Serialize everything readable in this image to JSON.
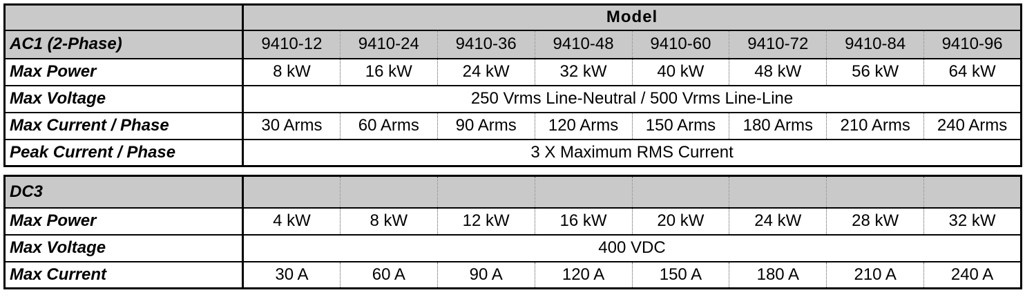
{
  "ac_table": {
    "header": "Model",
    "section": "AC1 (2-Phase)",
    "models": [
      "9410-12",
      "9410-24",
      "9410-36",
      "9410-48",
      "9410-60",
      "9410-72",
      "9410-84",
      "9410-96"
    ],
    "rows": [
      {
        "label": "Max Power",
        "values": [
          "8 kW",
          "16 kW",
          "24 kW",
          "32 kW",
          "40 kW",
          "48 kW",
          "56 kW",
          "64 kW"
        ]
      },
      {
        "label": "Max Voltage",
        "span": "250 Vrms Line-Neutral / 500 Vrms Line-Line"
      },
      {
        "label": "Max Current / Phase",
        "values": [
          "30 Arms",
          "60 Arms",
          "90 Arms",
          "120 Arms",
          "150 Arms",
          "180 Arms",
          "210 Arms",
          "240 Arms"
        ]
      },
      {
        "label": "Peak Current / Phase",
        "span": "3 X Maximum RMS Current"
      }
    ]
  },
  "dc_table": {
    "section": "DC3",
    "rows": [
      {
        "label": "Max Power",
        "values": [
          "4 kW",
          "8 kW",
          "12 kW",
          "16 kW",
          "20 kW",
          "24 kW",
          "28 kW",
          "32 kW"
        ]
      },
      {
        "label": "Max Voltage",
        "span": "400 VDC"
      },
      {
        "label": "Max Current",
        "values": [
          "30 A",
          "60 A",
          "90 A",
          "120 A",
          "150 A",
          "180 A",
          "210 A",
          "240 A"
        ]
      }
    ]
  }
}
